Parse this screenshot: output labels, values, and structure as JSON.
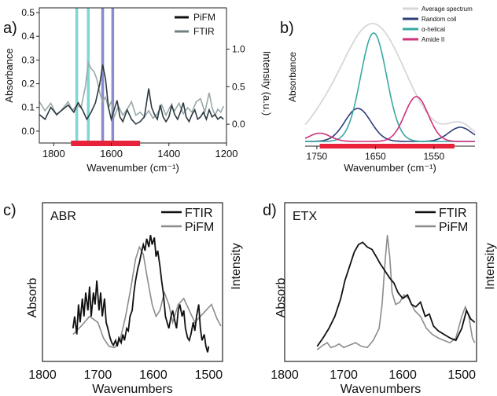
{
  "colors": {
    "black": "#111111",
    "gray": "#8c8c8c",
    "teal_line": "#7fd6d6",
    "purple_line": "#8b8bd0",
    "red_bar": "#e8223a",
    "avg": "#d7d7d7",
    "random_coil": "#2e3d78",
    "alpha_helical": "#3aa8a2",
    "amide_ii": "#d0317b"
  },
  "chart_data": [
    {
      "panel_label": "a)",
      "type": "line",
      "xlabel": "Wavenumber (cm⁻¹)",
      "ylabel": "Absorbance",
      "ylabel_right": "Intensity (a.u.)",
      "x_ticks": [
        "1800",
        "1600",
        "1400",
        "1200"
      ],
      "xlim": [
        1850,
        1200
      ],
      "y_ticks": [
        "0.0",
        "0.1",
        "0.2",
        "0.3",
        "0.4",
        "0.5"
      ],
      "ylim": [
        -0.05,
        0.52
      ],
      "y_right_ticks": [
        "0.0",
        "0.5",
        "1.0"
      ],
      "y_right_lim": [
        -0.25,
        1.55
      ],
      "legend": [
        "PiFM",
        "FTIR"
      ],
      "legend_position": "top-right",
      "highlight_lines_teal": [
        1720,
        1680
      ],
      "highlight_lines_purple": [
        1630,
        1595
      ],
      "highlight_band": [
        1740,
        1500
      ],
      "series": [
        {
          "name": "PiFM",
          "axis": "left",
          "x": [
            1850,
            1830,
            1810,
            1790,
            1770,
            1750,
            1730,
            1715,
            1700,
            1685,
            1670,
            1655,
            1640,
            1630,
            1620,
            1610,
            1600,
            1590,
            1580,
            1570,
            1560,
            1545,
            1530,
            1515,
            1500,
            1485,
            1470,
            1460,
            1450,
            1440,
            1430,
            1420,
            1410,
            1400,
            1390,
            1380,
            1370,
            1360,
            1350,
            1340,
            1330,
            1320,
            1310,
            1300,
            1290,
            1280,
            1270,
            1260,
            1250,
            1240,
            1230,
            1220,
            1210
          ],
          "y": [
            0.07,
            0.05,
            0.1,
            0.07,
            0.09,
            0.11,
            0.08,
            0.12,
            0.09,
            0.05,
            0.08,
            0.12,
            0.2,
            0.28,
            0.22,
            0.1,
            0.05,
            0.09,
            0.13,
            0.06,
            0.04,
            0.09,
            0.05,
            0.03,
            0.04,
            0.06,
            0.18,
            0.1,
            0.07,
            0.05,
            0.11,
            0.06,
            0.04,
            0.06,
            0.11,
            0.07,
            0.05,
            0.08,
            0.12,
            0.06,
            0.04,
            0.07,
            0.09,
            0.05,
            0.06,
            0.08,
            0.05,
            0.09,
            0.06,
            0.07,
            0.05,
            0.06,
            0.05
          ]
        },
        {
          "name": "FTIR",
          "axis": "right",
          "x": [
            1850,
            1830,
            1810,
            1790,
            1770,
            1750,
            1735,
            1720,
            1705,
            1690,
            1680,
            1670,
            1660,
            1650,
            1640,
            1630,
            1620,
            1610,
            1600,
            1590,
            1575,
            1560,
            1545,
            1530,
            1515,
            1500,
            1485,
            1470,
            1455,
            1440,
            1425,
            1410,
            1395,
            1380,
            1365,
            1350,
            1335,
            1320,
            1305,
            1290,
            1275,
            1260,
            1250,
            1240,
            1230,
            1220,
            1210
          ],
          "y": [
            0.3,
            0.18,
            0.28,
            0.12,
            0.2,
            0.3,
            0.18,
            0.26,
            0.22,
            0.5,
            0.82,
            0.74,
            0.7,
            0.6,
            0.42,
            0.3,
            0.36,
            0.22,
            0.3,
            0.1,
            0.24,
            0.12,
            0.2,
            0.3,
            0.12,
            0.16,
            0.1,
            0.18,
            0.08,
            0.14,
            0.26,
            0.12,
            0.24,
            0.18,
            0.28,
            0.14,
            0.22,
            0.16,
            0.3,
            0.34,
            0.16,
            0.42,
            0.22,
            0.12,
            0.2,
            0.16,
            0.24
          ]
        }
      ]
    },
    {
      "panel_label": "b)",
      "type": "line",
      "xlabel": "Wavenumber (cm⁻¹)",
      "ylabel": "Absorbance",
      "x_ticks": [
        "1750",
        "1650",
        "1550"
      ],
      "xlim": [
        1770,
        1480
      ],
      "highlight_band": [
        1745,
        1515
      ],
      "legend": [
        "Average spectrum",
        "Random coil",
        "α-helical",
        "Amide II"
      ],
      "legend_position": "top-right",
      "series": [
        {
          "name": "Average spectrum",
          "peaks": [
            {
              "center": 1655,
              "height": 1.0,
              "width": 55
            },
            {
              "center": 1745,
              "height": 0.05,
              "width": 25
            },
            {
              "center": 1505,
              "height": 0.14,
              "width": 22
            }
          ]
        },
        {
          "name": "Random coil",
          "peaks": [
            {
              "center": 1680,
              "height": 0.28,
              "width": 22
            },
            {
              "center": 1505,
              "height": 0.12,
              "width": 20
            }
          ]
        },
        {
          "name": "α-helical",
          "peaks": [
            {
              "center": 1653,
              "height": 0.92,
              "width": 22
            }
          ]
        },
        {
          "name": "Amide II",
          "peaks": [
            {
              "center": 1580,
              "height": 0.38,
              "width": 20
            },
            {
              "center": 1745,
              "height": 0.07,
              "width": 18
            }
          ]
        }
      ]
    },
    {
      "panel_label": "c)",
      "type": "line",
      "title": "ABR",
      "xlabel": "Wavenumbers",
      "ylabel": "Absorb",
      "ylabel_right": "Intensity",
      "x_ticks": [
        "1800",
        "1700",
        "1600",
        "1500"
      ],
      "xlim": [
        1800,
        1475
      ],
      "legend": [
        "FTIR",
        "PiFM"
      ],
      "legend_position": "top-right",
      "series": [
        {
          "name": "FTIR",
          "x": [
            1745,
            1742,
            1738,
            1735,
            1732,
            1728,
            1725,
            1722,
            1718,
            1715,
            1712,
            1708,
            1705,
            1702,
            1698,
            1695,
            1692,
            1688,
            1685,
            1682,
            1678,
            1675,
            1672,
            1668,
            1665,
            1662,
            1658,
            1655,
            1652,
            1648,
            1645,
            1642,
            1638,
            1635,
            1632,
            1628,
            1625,
            1622,
            1618,
            1615,
            1612,
            1608,
            1605,
            1602,
            1598,
            1595,
            1592,
            1588,
            1585,
            1582,
            1578,
            1575,
            1572,
            1568,
            1565,
            1562,
            1558,
            1555,
            1552,
            1548,
            1545,
            1542,
            1538,
            1535,
            1532,
            1528,
            1525,
            1522,
            1518,
            1515,
            1512,
            1508,
            1505,
            1502,
            1500
          ],
          "y": [
            0.2,
            0.3,
            0.15,
            0.4,
            0.25,
            0.45,
            0.3,
            0.5,
            0.35,
            0.55,
            0.3,
            0.5,
            0.4,
            0.6,
            0.35,
            0.5,
            0.3,
            0.45,
            0.25,
            0.2,
            0.12,
            0.08,
            0.06,
            0.1,
            0.05,
            0.12,
            0.08,
            0.15,
            0.1,
            0.2,
            0.18,
            0.3,
            0.35,
            0.5,
            0.6,
            0.7,
            0.75,
            0.82,
            0.9,
            0.85,
            0.95,
            0.88,
            0.98,
            0.9,
            0.96,
            0.8,
            0.85,
            0.72,
            0.6,
            0.5,
            0.3,
            0.25,
            0.2,
            0.3,
            0.35,
            0.28,
            0.2,
            0.35,
            0.4,
            0.3,
            0.35,
            0.2,
            0.12,
            0.1,
            0.15,
            0.25,
            0.18,
            0.3,
            0.4,
            0.2,
            0.1,
            0.15,
            0.05,
            0.0,
            0.05
          ]
        },
        {
          "name": "PiFM",
          "x": [
            1745,
            1730,
            1715,
            1700,
            1690,
            1680,
            1670,
            1660,
            1650,
            1640,
            1632,
            1625,
            1618,
            1610,
            1602,
            1595,
            1588,
            1580,
            1572,
            1565,
            1555,
            1545,
            1535,
            1525,
            1515,
            1505,
            1495,
            1485,
            1478
          ],
          "y": [
            0.15,
            0.22,
            0.3,
            0.25,
            0.12,
            0.05,
            0.04,
            0.1,
            0.3,
            0.55,
            0.78,
            0.88,
            0.82,
            0.6,
            0.4,
            0.3,
            0.35,
            0.5,
            0.4,
            0.25,
            0.4,
            0.45,
            0.35,
            0.25,
            0.3,
            0.35,
            0.4,
            0.28,
            0.22
          ]
        }
      ]
    },
    {
      "panel_label": "d)",
      "type": "line",
      "title": "ETX",
      "xlabel": "Wavenumbers",
      "ylabel": "Absorb",
      "ylabel_right": "Intensity",
      "x_ticks": [
        "1800",
        "1700",
        "1600",
        "1500"
      ],
      "xlim": [
        1800,
        1475
      ],
      "legend": [
        "FTIR",
        "PiFM"
      ],
      "legend_position": "top-right",
      "series": [
        {
          "name": "FTIR",
          "x": [
            1745,
            1735,
            1725,
            1715,
            1705,
            1698,
            1690,
            1682,
            1675,
            1668,
            1660,
            1652,
            1645,
            1638,
            1630,
            1622,
            1615,
            1608,
            1600,
            1592,
            1585,
            1578,
            1570,
            1562,
            1555,
            1548,
            1540,
            1530,
            1520,
            1510,
            1500,
            1492,
            1485,
            1478
          ],
          "y": [
            0.05,
            0.12,
            0.2,
            0.3,
            0.45,
            0.6,
            0.72,
            0.84,
            0.9,
            0.92,
            0.88,
            0.86,
            0.8,
            0.74,
            0.68,
            0.62,
            0.58,
            0.5,
            0.45,
            0.48,
            0.4,
            0.38,
            0.42,
            0.3,
            0.32,
            0.22,
            0.18,
            0.15,
            0.12,
            0.1,
            0.2,
            0.35,
            0.28,
            0.25
          ]
        },
        {
          "name": "PiFM",
          "x": [
            1745,
            1735,
            1728,
            1722,
            1715,
            1708,
            1700,
            1690,
            1680,
            1670,
            1660,
            1650,
            1645,
            1640,
            1635,
            1630,
            1626,
            1622,
            1618,
            1612,
            1605,
            1598,
            1590,
            1580,
            1570,
            1560,
            1550,
            1540,
            1530,
            1520,
            1510,
            1500,
            1494,
            1488,
            1482,
            1478
          ],
          "y": [
            0.02,
            0.06,
            0.08,
            0.04,
            0.05,
            0.07,
            0.04,
            0.06,
            0.08,
            0.05,
            0.04,
            0.1,
            0.15,
            0.2,
            0.4,
            0.75,
            0.98,
            0.8,
            0.5,
            0.4,
            0.42,
            0.48,
            0.45,
            0.35,
            0.3,
            0.2,
            0.15,
            0.12,
            0.1,
            0.08,
            0.12,
            0.3,
            0.38,
            0.3,
            0.12,
            0.08
          ]
        }
      ]
    }
  ]
}
